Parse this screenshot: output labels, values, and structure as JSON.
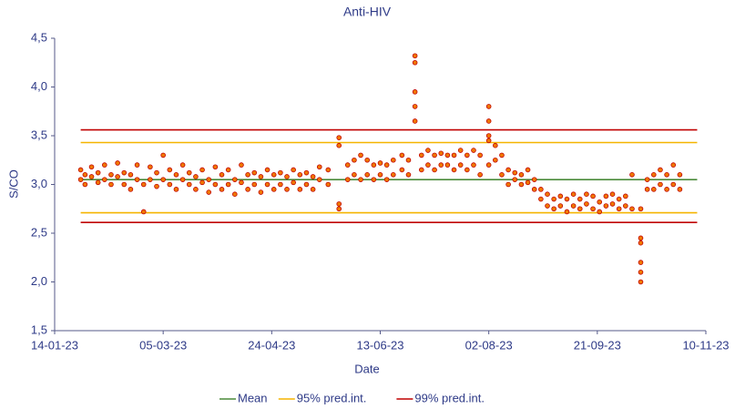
{
  "chart_data": {
    "type": "scatter",
    "title": "Anti-HIV",
    "x_label": "Date",
    "y_label": "S/CO",
    "xlim": [
      44940,
      45240
    ],
    "xticks": [
      {
        "value": 44940,
        "label": "14-01-23"
      },
      {
        "value": 44990,
        "label": "05-03-23"
      },
      {
        "value": 45040,
        "label": "24-04-23"
      },
      {
        "value": 45090,
        "label": "13-06-23"
      },
      {
        "value": 45140,
        "label": "02-08-23"
      },
      {
        "value": 45190,
        "label": "21-09-23"
      },
      {
        "value": 45240,
        "label": "10-11-23"
      }
    ],
    "ylim": [
      1.5,
      4.5
    ],
    "yticks": [
      {
        "value": 1.5,
        "label": "1,5"
      },
      {
        "value": 2.0,
        "label": "2,0"
      },
      {
        "value": 2.5,
        "label": "2,5"
      },
      {
        "value": 3.0,
        "label": "3,0"
      },
      {
        "value": 3.5,
        "label": "3,5"
      },
      {
        "value": 4.0,
        "label": "4,0"
      },
      {
        "value": 4.5,
        "label": "4,5"
      }
    ],
    "points": {
      "color": "#f07800",
      "edge_color": "#c00000",
      "x": [
        44952,
        44952,
        44954,
        44954,
        44957,
        44957,
        44960,
        44960,
        44963,
        44963,
        44966,
        44966,
        44969,
        44969,
        44972,
        44972,
        44975,
        44975,
        44978,
        44978,
        44981,
        44981,
        44984,
        44984,
        44987,
        44987,
        44990,
        44990,
        44993,
        44993,
        44996,
        44996,
        44999,
        44999,
        45002,
        45002,
        45005,
        45005,
        45008,
        45008,
        45011,
        45011,
        45014,
        45014,
        45017,
        45017,
        45020,
        45020,
        45023,
        45023,
        45026,
        45026,
        45029,
        45029,
        45032,
        45032,
        45035,
        45035,
        45038,
        45038,
        45041,
        45041,
        45044,
        45044,
        45047,
        45047,
        45050,
        45050,
        45053,
        45053,
        45056,
        45056,
        45059,
        45059,
        45062,
        45062,
        45066,
        45066,
        45071,
        45071,
        45071,
        45071,
        45075,
        45075,
        45078,
        45078,
        45081,
        45081,
        45084,
        45084,
        45087,
        45087,
        45090,
        45090,
        45093,
        45093,
        45096,
        45096,
        45100,
        45100,
        45103,
        45103,
        45106,
        45106,
        45106,
        45106,
        45106,
        45109,
        45109,
        45112,
        45112,
        45115,
        45115,
        45118,
        45118,
        45121,
        45121,
        45124,
        45124,
        45127,
        45127,
        45130,
        45130,
        45133,
        45133,
        45136,
        45136,
        45140,
        45140,
        45140,
        45140,
        45140,
        45143,
        45143,
        45146,
        45146,
        45149,
        45149,
        45152,
        45152,
        45155,
        45155,
        45158,
        45158,
        45161,
        45161,
        45164,
        45164,
        45167,
        45167,
        45170,
        45170,
        45173,
        45173,
        45176,
        45176,
        45179,
        45179,
        45182,
        45182,
        45185,
        45185,
        45188,
        45188,
        45191,
        45191,
        45194,
        45194,
        45197,
        45197,
        45200,
        45200,
        45203,
        45203,
        45206,
        45206,
        45210,
        45210,
        45210,
        45210,
        45210,
        45210,
        45213,
        45213,
        45216,
        45216,
        45219,
        45219,
        45222,
        45222,
        45225,
        45225,
        45228,
        45228
      ],
      "values": [
        3.05,
        3.15,
        3.0,
        3.1,
        3.08,
        3.18,
        3.02,
        3.12,
        3.05,
        3.2,
        3.0,
        3.1,
        3.08,
        3.22,
        3.0,
        3.12,
        2.95,
        3.1,
        3.05,
        3.2,
        2.72,
        3.0,
        3.05,
        3.18,
        2.98,
        3.12,
        3.05,
        3.3,
        3.0,
        3.15,
        2.95,
        3.1,
        3.05,
        3.2,
        3.0,
        3.12,
        2.95,
        3.08,
        3.02,
        3.15,
        2.92,
        3.05,
        3.0,
        3.18,
        2.95,
        3.1,
        3.0,
        3.15,
        2.9,
        3.05,
        3.02,
        3.2,
        2.95,
        3.1,
        3.0,
        3.12,
        2.92,
        3.08,
        3.0,
        3.15,
        2.95,
        3.1,
        3.0,
        3.12,
        2.95,
        3.08,
        3.02,
        3.15,
        2.95,
        3.1,
        3.0,
        3.12,
        2.95,
        3.08,
        3.05,
        3.18,
        3.0,
        3.15,
        2.75,
        3.48,
        3.4,
        2.8,
        3.05,
        3.2,
        3.1,
        3.25,
        3.05,
        3.3,
        3.1,
        3.25,
        3.05,
        3.2,
        3.1,
        3.22,
        3.05,
        3.2,
        3.1,
        3.25,
        3.15,
        3.3,
        3.1,
        3.25,
        3.65,
        3.8,
        3.95,
        4.25,
        4.32,
        3.15,
        3.3,
        3.2,
        3.35,
        3.15,
        3.3,
        3.2,
        3.32,
        3.2,
        3.3,
        3.15,
        3.3,
        3.2,
        3.35,
        3.15,
        3.3,
        3.2,
        3.35,
        3.1,
        3.3,
        3.5,
        3.65,
        3.8,
        3.2,
        3.45,
        3.25,
        3.4,
        3.1,
        3.3,
        3.0,
        3.15,
        3.05,
        3.12,
        3.0,
        3.1,
        3.02,
        3.15,
        2.95,
        3.05,
        2.85,
        2.95,
        2.78,
        2.9,
        2.75,
        2.85,
        2.78,
        2.88,
        2.72,
        2.85,
        2.78,
        2.9,
        2.75,
        2.85,
        2.8,
        2.9,
        2.75,
        2.88,
        2.72,
        2.82,
        2.78,
        2.88,
        2.8,
        2.9,
        2.75,
        2.85,
        2.78,
        2.88,
        2.75,
        3.1,
        2.0,
        2.1,
        2.2,
        2.4,
        2.45,
        2.75,
        2.95,
        3.05,
        2.95,
        3.1,
        3.0,
        3.15,
        2.95,
        3.1,
        3.0,
        3.2,
        2.95,
        3.1
      ]
    },
    "line_x_extent": [
      44952,
      45236
    ],
    "reference_lines": [
      {
        "name": "Mean",
        "color": "#4a8a3a",
        "values": [
          3.05
        ]
      },
      {
        "name": "95% pred.int.",
        "color": "#f5b400",
        "values": [
          2.71,
          3.43
        ]
      },
      {
        "name": "99% pred.int.",
        "color": "#c00000",
        "values": [
          2.61,
          3.56
        ]
      }
    ],
    "legend": "bottom",
    "grid": false
  }
}
